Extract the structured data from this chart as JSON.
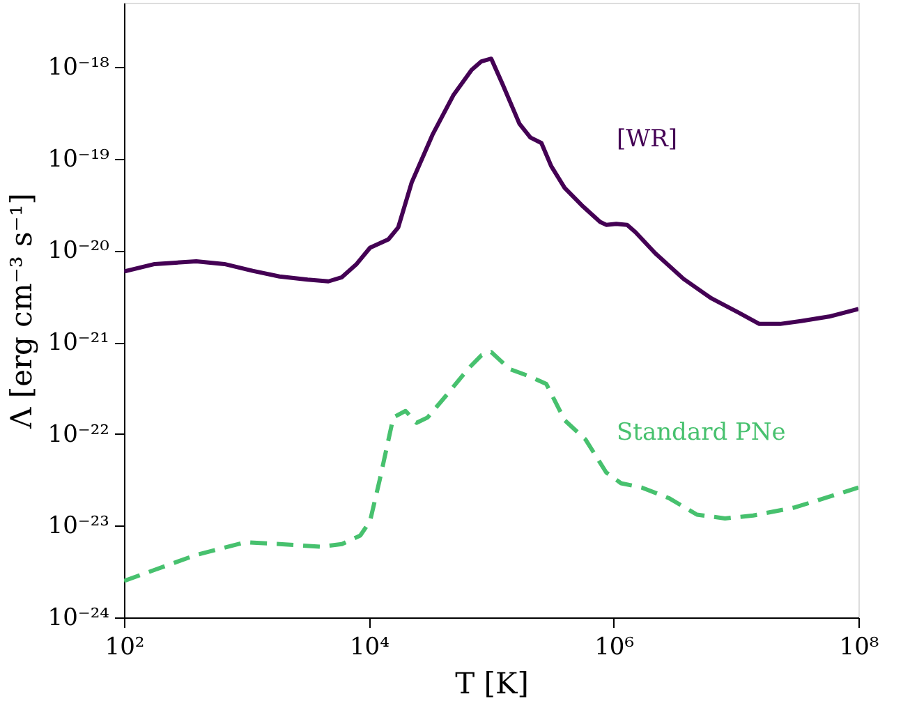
{
  "chart_data": {
    "type": "line",
    "xlabel": "T [K]",
    "ylabel": "Λ [erg cm⁻³ s⁻¹]",
    "log": "xy",
    "grid": false,
    "marker": "none",
    "xlim": [
      100,
      100000000
    ],
    "ylim": [
      1e-24,
      5e-18
    ],
    "xticks": [
      {
        "value": 100,
        "label": "10²"
      },
      {
        "value": 10000,
        "label": "10⁴"
      },
      {
        "value": 1000000,
        "label": "10⁶"
      },
      {
        "value": 100000000,
        "label": "10⁸"
      }
    ],
    "yticks": [
      {
        "value": 1e-24,
        "label": "10⁻²⁴"
      },
      {
        "value": 1e-23,
        "label": "10⁻²³"
      },
      {
        "value": 1e-22,
        "label": "10⁻²²"
      },
      {
        "value": 1e-21,
        "label": "10⁻²¹"
      },
      {
        "value": 1e-20,
        "label": "10⁻²⁰"
      },
      {
        "value": 1e-19,
        "label": "10⁻¹⁹"
      },
      {
        "value": 1e-18,
        "label": "10⁻¹⁸"
      }
    ],
    "series": [
      {
        "name": "[WR]",
        "color": "#440154",
        "line_style": "solid",
        "x": [
          100,
          178,
          389,
          661,
          1122,
          1862,
          3162,
          4677,
          6026,
          7943,
          10230,
          14450,
          17380,
          22390,
          33110,
          48980,
          69180,
          83180,
          100000,
          123000,
          170000,
          209000,
          257000,
          309000,
          398000,
          550000,
          776000,
          870000,
          1050000,
          1290000,
          1510000,
          2190000,
          3720000,
          6300000,
          10500000,
          15500000,
          22900000,
          33900000,
          57500000,
          100000000
        ],
        "values": [
          5.9e-21,
          7.1e-21,
          7.6e-21,
          7.1e-21,
          6e-21,
          5.2e-21,
          4.8e-21,
          4.6e-21,
          5.1e-21,
          7.1e-21,
          1.07e-20,
          1.32e-20,
          1.78e-20,
          5.5e-20,
          1.82e-19,
          4.9e-19,
          9.3e-19,
          1.15e-18,
          1.23e-18,
          6.6e-19,
          2.4e-19,
          1.7e-19,
          1.48e-19,
          8.3e-20,
          4.8e-20,
          3.1e-20,
          2.04e-20,
          1.9e-20,
          1.95e-20,
          1.9e-20,
          1.58e-20,
          9.3e-21,
          4.9e-21,
          3e-21,
          2.1e-21,
          1.58e-21,
          1.58e-21,
          1.7e-21,
          1.9e-21,
          2.3e-21
        ]
      },
      {
        "name": "Standard PNe",
        "color": "#47c16e",
        "line_style": "dashed",
        "x": [
          100,
          178,
          389,
          977,
          1862,
          4070,
          6026,
          8511,
          10230,
          12300,
          15850,
          19950,
          24550,
          30200,
          43650,
          64570,
          83180,
          100000,
          141000,
          209000,
          282000,
          398000,
          589000,
          870000,
          1150000,
          1700000,
          2820000,
          4790000,
          8130000,
          13800000,
          30200000,
          100000000
        ],
        "values": [
          2.5e-24,
          3.3e-24,
          4.8e-24,
          6.6e-24,
          6.3e-24,
          5.9e-24,
          6.3e-24,
          7.8e-24,
          1.12e-23,
          3.2e-23,
          1.51e-22,
          1.78e-22,
          1.32e-22,
          1.51e-22,
          2.7e-22,
          5.1e-22,
          7.2e-22,
          7.8e-22,
          5.1e-22,
          4.2e-22,
          3.5e-22,
          1.41e-22,
          8.7e-23,
          3.8e-23,
          2.9e-23,
          2.6e-23,
          2e-23,
          1.32e-23,
          1.2e-23,
          1.29e-23,
          1.58e-23,
          2.6e-23
        ]
      }
    ]
  }
}
